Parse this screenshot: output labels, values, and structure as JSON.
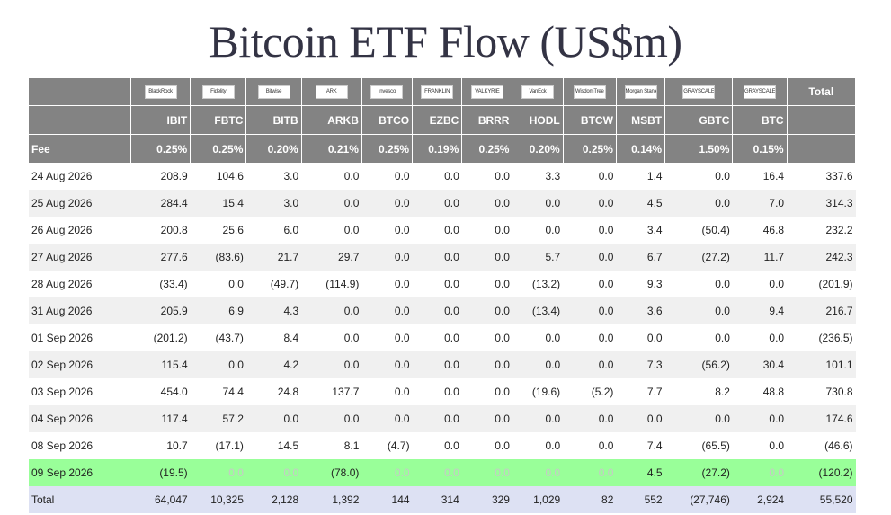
{
  "title": "Bitcoin ETF Flow (US$m)",
  "header": {
    "total_label": "Total",
    "fee_label": "Fee",
    "tickers": [
      "IBIT",
      "FBTC",
      "BITB",
      "ARKB",
      "BTCO",
      "EZBC",
      "BRRR",
      "HODL",
      "BTCW",
      "MSBT",
      "GBTC",
      "BTC"
    ],
    "fees": [
      "0.25%",
      "0.25%",
      "0.20%",
      "0.21%",
      "0.25%",
      "0.19%",
      "0.25%",
      "0.20%",
      "0.25%",
      "0.14%",
      "1.50%",
      "0.15%"
    ],
    "logos": [
      "BlackRock",
      "Fidelity",
      "Bitwise",
      "ARK",
      "Invesco",
      "FRANKLIN",
      "VALKYRIE",
      "VanEck",
      "WisdomTree",
      "Morgan Stanley",
      "GRAYSCALE",
      "GRAYSCALE"
    ]
  },
  "rows": [
    {
      "date": "24 Aug 2026",
      "values": [
        "208.9",
        "104.6",
        "3.0",
        "0.0",
        "0.0",
        "0.0",
        "0.0",
        "3.3",
        "0.0",
        "1.4",
        "0.0",
        "16.4"
      ],
      "total": "337.6"
    },
    {
      "date": "25 Aug 2026",
      "values": [
        "284.4",
        "15.4",
        "3.0",
        "0.0",
        "0.0",
        "0.0",
        "0.0",
        "0.0",
        "0.0",
        "4.5",
        "0.0",
        "7.0"
      ],
      "total": "314.3"
    },
    {
      "date": "26 Aug 2026",
      "values": [
        "200.8",
        "25.6",
        "6.0",
        "0.0",
        "0.0",
        "0.0",
        "0.0",
        "0.0",
        "0.0",
        "3.4",
        "(50.4)",
        "46.8"
      ],
      "total": "232.2"
    },
    {
      "date": "27 Aug 2026",
      "values": [
        "277.6",
        "(83.6)",
        "21.7",
        "29.7",
        "0.0",
        "0.0",
        "0.0",
        "5.7",
        "0.0",
        "6.7",
        "(27.2)",
        "11.7"
      ],
      "total": "242.3"
    },
    {
      "date": "28 Aug 2026",
      "values": [
        "(33.4)",
        "0.0",
        "(49.7)",
        "(114.9)",
        "0.0",
        "0.0",
        "0.0",
        "(13.2)",
        "0.0",
        "9.3",
        "0.0",
        "0.0"
      ],
      "total": "(201.9)"
    },
    {
      "date": "31 Aug 2026",
      "values": [
        "205.9",
        "6.9",
        "4.3",
        "0.0",
        "0.0",
        "0.0",
        "0.0",
        "(13.4)",
        "0.0",
        "3.6",
        "0.0",
        "9.4"
      ],
      "total": "216.7"
    },
    {
      "date": "01 Sep 2026",
      "values": [
        "(201.2)",
        "(43.7)",
        "8.4",
        "0.0",
        "0.0",
        "0.0",
        "0.0",
        "0.0",
        "0.0",
        "0.0",
        "0.0",
        "0.0"
      ],
      "total": "(236.5)"
    },
    {
      "date": "02 Sep 2026",
      "values": [
        "115.4",
        "0.0",
        "4.2",
        "0.0",
        "0.0",
        "0.0",
        "0.0",
        "0.0",
        "0.0",
        "7.3",
        "(56.2)",
        "30.4"
      ],
      "total": "101.1"
    },
    {
      "date": "03 Sep 2026",
      "values": [
        "454.0",
        "74.4",
        "24.8",
        "137.7",
        "0.0",
        "0.0",
        "0.0",
        "(19.6)",
        "(5.2)",
        "7.7",
        "8.2",
        "48.8"
      ],
      "total": "730.8"
    },
    {
      "date": "04 Sep 2026",
      "values": [
        "117.4",
        "57.2",
        "0.0",
        "0.0",
        "0.0",
        "0.0",
        "0.0",
        "0.0",
        "0.0",
        "0.0",
        "0.0",
        "0.0"
      ],
      "total": "174.6"
    },
    {
      "date": "08 Sep 2026",
      "values": [
        "10.7",
        "(17.1)",
        "14.5",
        "8.1",
        "(4.7)",
        "0.0",
        "0.0",
        "0.0",
        "0.0",
        "7.4",
        "(65.5)",
        "0.0"
      ],
      "total": "(46.6)"
    },
    {
      "date": "09 Sep 2026",
      "values": [
        "(19.5)",
        "0.0",
        "0.0",
        "(78.0)",
        "0.0",
        "0.0",
        "0.0",
        "0.0",
        "0.0",
        "4.5",
        "(27.2)",
        "0.0"
      ],
      "total": "(120.2)",
      "highlight": true
    }
  ],
  "totals": {
    "label": "Total",
    "values": [
      "64,047",
      "10,325",
      "2,128",
      "1,392",
      "144",
      "314",
      "329",
      "1,029",
      "82",
      "552",
      "(27,746)",
      "2,924"
    ],
    "total": "55,520"
  },
  "colors": {
    "header_bg": "#838383",
    "highlight_row": "#99ff99",
    "total_row": "#dde1f3",
    "negative": "#ee1111",
    "zero": "#bbbbbb",
    "alt_row": "#f0f0f0"
  }
}
